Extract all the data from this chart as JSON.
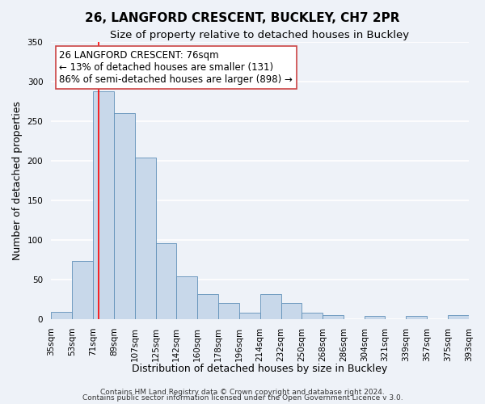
{
  "title": "26, LANGFORD CRESCENT, BUCKLEY, CH7 2PR",
  "subtitle": "Size of property relative to detached houses in Buckley",
  "xlabel": "Distribution of detached houses by size in Buckley",
  "ylabel": "Number of detached properties",
  "bin_labels": [
    "35sqm",
    "53sqm",
    "71sqm",
    "89sqm",
    "107sqm",
    "125sqm",
    "142sqm",
    "160sqm",
    "178sqm",
    "196sqm",
    "214sqm",
    "232sqm",
    "250sqm",
    "268sqm",
    "286sqm",
    "304sqm",
    "321sqm",
    "339sqm",
    "357sqm",
    "375sqm",
    "393sqm"
  ],
  "bar_heights": [
    9,
    73,
    287,
    260,
    204,
    96,
    54,
    31,
    20,
    8,
    31,
    20,
    8,
    5,
    0,
    4,
    0,
    4,
    0,
    5
  ],
  "bin_edges": [
    35,
    53,
    71,
    89,
    107,
    125,
    142,
    160,
    178,
    196,
    214,
    232,
    250,
    268,
    286,
    304,
    321,
    339,
    357,
    375,
    393
  ],
  "bar_color": "#c8d8ea",
  "bar_edge_color": "#6090b8",
  "vline_x": 76,
  "vline_color": "red",
  "ylim": [
    0,
    350
  ],
  "yticks": [
    0,
    50,
    100,
    150,
    200,
    250,
    300,
    350
  ],
  "annotation_text": "26 LANGFORD CRESCENT: 76sqm\n← 13% of detached houses are smaller (131)\n86% of semi-detached houses are larger (898) →",
  "annotation_box_color": "white",
  "annotation_box_edge": "#cc4444",
  "footnote1": "Contains HM Land Registry data © Crown copyright and database right 2024.",
  "footnote2": "Contains public sector information licensed under the Open Government Licence v 3.0.",
  "bg_color": "#eef2f8",
  "plot_bg_color": "#eef2f8",
  "grid_color": "white",
  "title_fontsize": 11,
  "subtitle_fontsize": 9.5,
  "axis_label_fontsize": 9,
  "tick_fontsize": 7.5,
  "annotation_fontsize": 8.5,
  "footnote_fontsize": 6.5
}
